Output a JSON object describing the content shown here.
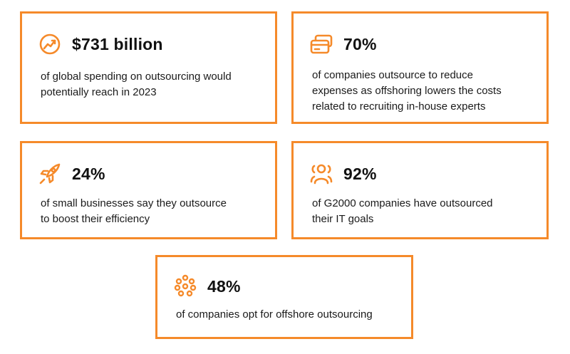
{
  "accent_color": "#f58a2a",
  "cards": [
    {
      "icon": "globe-growth-icon",
      "stat": "$731 billion",
      "description_lines": [
        "of global spending on outsourcing would",
        "potentially reach in 2023"
      ]
    },
    {
      "icon": "credit-card-icon",
      "stat": "70%",
      "description_lines": [
        "of companies outsource to reduce",
        "expenses as offshoring lowers the costs",
        "related to recruiting in-house experts"
      ]
    },
    {
      "icon": "rocket-icon",
      "stat": "24%",
      "description_lines": [
        "of small businesses say they outsource",
        "to boost their efficiency"
      ]
    },
    {
      "icon": "team-users-icon",
      "stat": "92%",
      "description_lines": [
        "of G2000 companies have outsourced",
        "their IT goals"
      ]
    },
    {
      "icon": "dots-cluster-icon",
      "stat": "48%",
      "description_lines": [
        "of companies opt for offshore outsourcing"
      ]
    }
  ]
}
